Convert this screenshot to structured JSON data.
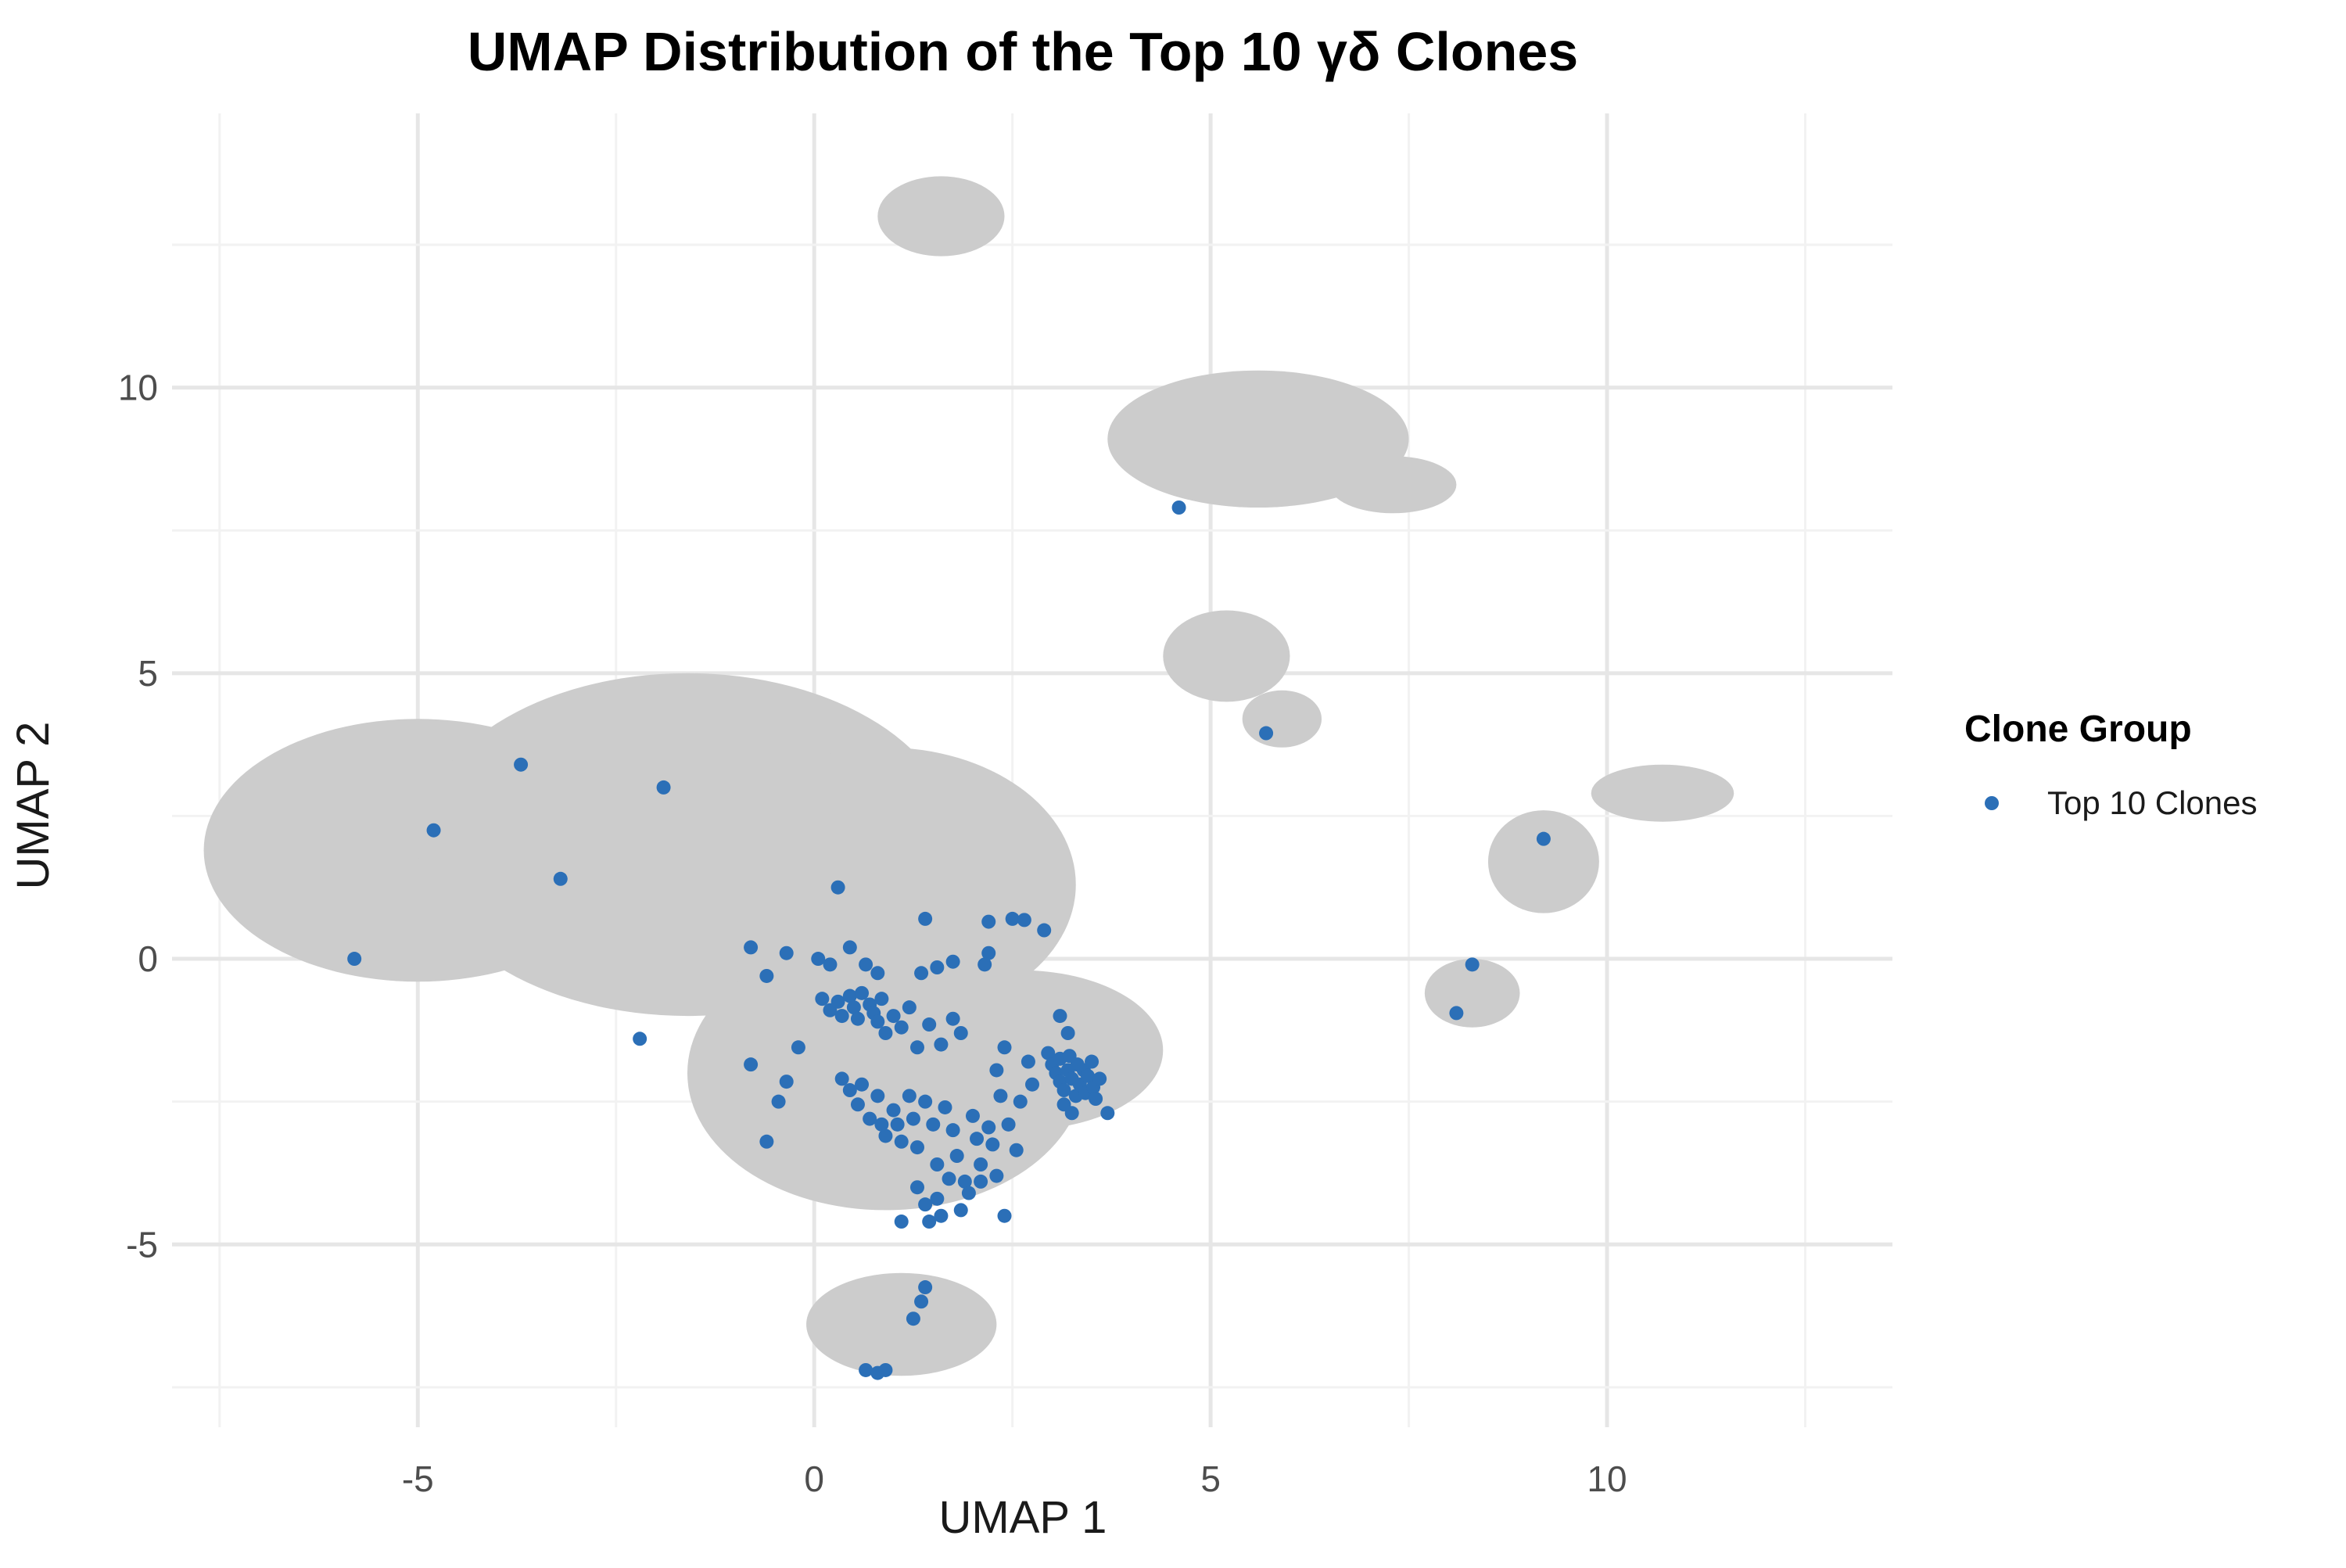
{
  "chart_data": {
    "type": "scatter",
    "title": "UMAP Distribution of the Top 10 γδ Clones",
    "xlabel": "UMAP 1",
    "ylabel": "UMAP 2",
    "xlim": [
      -8.1,
      13.6
    ],
    "ylim": [
      -8.2,
      14.8
    ],
    "x_ticks": [
      -5,
      0,
      5,
      10
    ],
    "x_tick_labels": [
      "-5",
      "0",
      "5",
      "10"
    ],
    "y_ticks": [
      -5,
      0,
      5,
      10
    ],
    "y_tick_labels": [
      "-5",
      "0",
      "5",
      "10"
    ],
    "grid": true,
    "legend": {
      "title": "Clone Group",
      "placement": "right",
      "entries": [
        {
          "label": "Top 10 Clones",
          "color": "#2B6FB7"
        }
      ]
    },
    "background": {
      "color": "#CCCCCC",
      "regions": [
        {
          "cx": -5.0,
          "cy": 1.9,
          "rx": 2.7,
          "ry": 2.3
        },
        {
          "cx": -1.6,
          "cy": 2.0,
          "rx": 3.4,
          "ry": 3.0
        },
        {
          "cx": 0.9,
          "cy": 1.3,
          "rx": 2.4,
          "ry": 2.4
        },
        {
          "cx": 0.9,
          "cy": -2.0,
          "rx": 2.5,
          "ry": 2.4
        },
        {
          "cx": 2.6,
          "cy": -1.6,
          "rx": 1.8,
          "ry": 1.4
        },
        {
          "cx": 1.1,
          "cy": -6.4,
          "rx": 1.2,
          "ry": 0.9
        },
        {
          "cx": 1.6,
          "cy": 13.0,
          "rx": 0.8,
          "ry": 0.7
        },
        {
          "cx": 5.6,
          "cy": 9.1,
          "rx": 1.9,
          "ry": 1.2
        },
        {
          "cx": 7.3,
          "cy": 8.3,
          "rx": 0.8,
          "ry": 0.5
        },
        {
          "cx": 5.2,
          "cy": 5.3,
          "rx": 0.8,
          "ry": 0.8
        },
        {
          "cx": 5.9,
          "cy": 4.2,
          "rx": 0.5,
          "ry": 0.5
        },
        {
          "cx": 10.7,
          "cy": 2.9,
          "rx": 0.9,
          "ry": 0.5
        },
        {
          "cx": 9.2,
          "cy": 1.7,
          "rx": 0.7,
          "ry": 0.9
        },
        {
          "cx": 8.3,
          "cy": -0.6,
          "rx": 0.6,
          "ry": 0.6
        }
      ]
    },
    "series": [
      {
        "name": "Top 10 Clones",
        "color": "#2B6FB7",
        "points": [
          [
            4.6,
            7.9
          ],
          [
            5.7,
            3.95
          ],
          [
            9.2,
            2.1
          ],
          [
            8.3,
            -0.1
          ],
          [
            8.1,
            -0.95
          ],
          [
            -3.7,
            3.4
          ],
          [
            -1.9,
            3.0
          ],
          [
            -4.8,
            2.25
          ],
          [
            -3.2,
            1.4
          ],
          [
            -5.8,
            0.0
          ],
          [
            -2.2,
            -1.4
          ],
          [
            0.3,
            1.25
          ],
          [
            1.4,
            0.7
          ],
          [
            2.2,
            0.65
          ],
          [
            2.5,
            0.7
          ],
          [
            2.65,
            0.68
          ],
          [
            2.9,
            0.5
          ],
          [
            2.2,
            0.1
          ],
          [
            2.15,
            -0.1
          ],
          [
            1.75,
            -0.05
          ],
          [
            1.55,
            -0.15
          ],
          [
            1.35,
            -0.25
          ],
          [
            -0.8,
            0.2
          ],
          [
            -0.6,
            -0.3
          ],
          [
            -0.35,
            0.1
          ],
          [
            0.05,
            0.0
          ],
          [
            0.2,
            -0.1
          ],
          [
            0.45,
            0.2
          ],
          [
            0.65,
            -0.1
          ],
          [
            0.8,
            -0.25
          ],
          [
            0.1,
            -0.7
          ],
          [
            0.2,
            -0.9
          ],
          [
            0.3,
            -0.75
          ],
          [
            0.35,
            -1.0
          ],
          [
            0.45,
            -0.65
          ],
          [
            0.5,
            -0.85
          ],
          [
            0.55,
            -1.05
          ],
          [
            0.6,
            -0.6
          ],
          [
            0.7,
            -0.8
          ],
          [
            0.75,
            -0.95
          ],
          [
            0.8,
            -1.1
          ],
          [
            0.85,
            -0.7
          ],
          [
            0.9,
            -1.3
          ],
          [
            1.0,
            -1.0
          ],
          [
            1.1,
            -1.2
          ],
          [
            1.2,
            -0.85
          ],
          [
            1.3,
            -1.55
          ],
          [
            1.45,
            -1.15
          ],
          [
            1.6,
            -1.5
          ],
          [
            1.75,
            -1.05
          ],
          [
            1.85,
            -1.3
          ],
          [
            -0.2,
            -1.55
          ],
          [
            -0.8,
            -1.85
          ],
          [
            -0.35,
            -2.15
          ],
          [
            -0.45,
            -2.5
          ],
          [
            -0.6,
            -3.2
          ],
          [
            0.35,
            -2.1
          ],
          [
            0.45,
            -2.3
          ],
          [
            0.55,
            -2.55
          ],
          [
            0.6,
            -2.2
          ],
          [
            0.7,
            -2.8
          ],
          [
            0.8,
            -2.4
          ],
          [
            0.85,
            -2.9
          ],
          [
            0.9,
            -3.1
          ],
          [
            1.0,
            -2.65
          ],
          [
            1.05,
            -2.9
          ],
          [
            1.1,
            -3.2
          ],
          [
            1.2,
            -2.4
          ],
          [
            1.25,
            -2.8
          ],
          [
            1.3,
            -3.3
          ],
          [
            1.4,
            -2.5
          ],
          [
            1.5,
            -2.9
          ],
          [
            1.55,
            -3.6
          ],
          [
            1.65,
            -2.6
          ],
          [
            1.75,
            -3.0
          ],
          [
            1.8,
            -3.45
          ],
          [
            1.9,
            -3.9
          ],
          [
            2.0,
            -2.75
          ],
          [
            2.05,
            -3.15
          ],
          [
            2.1,
            -3.6
          ],
          [
            2.2,
            -2.95
          ],
          [
            2.25,
            -3.25
          ],
          [
            2.3,
            -3.8
          ],
          [
            2.35,
            -2.4
          ],
          [
            2.45,
            -2.9
          ],
          [
            2.55,
            -3.35
          ],
          [
            2.6,
            -2.5
          ],
          [
            2.7,
            -1.8
          ],
          [
            2.75,
            -2.2
          ],
          [
            2.3,
            -1.95
          ],
          [
            2.4,
            -1.55
          ],
          [
            2.95,
            -1.65
          ],
          [
            3.0,
            -1.85
          ],
          [
            3.05,
            -2.0
          ],
          [
            3.1,
            -1.75
          ],
          [
            3.1,
            -2.15
          ],
          [
            3.15,
            -2.3
          ],
          [
            3.2,
            -1.95
          ],
          [
            3.22,
            -1.7
          ],
          [
            3.25,
            -2.1
          ],
          [
            3.3,
            -2.4
          ],
          [
            3.32,
            -1.85
          ],
          [
            3.35,
            -2.2
          ],
          [
            3.4,
            -1.95
          ],
          [
            3.42,
            -2.35
          ],
          [
            3.45,
            -2.05
          ],
          [
            3.5,
            -1.8
          ],
          [
            3.52,
            -2.25
          ],
          [
            3.55,
            -2.45
          ],
          [
            3.6,
            -2.1
          ],
          [
            3.1,
            -1.0
          ],
          [
            3.2,
            -1.3
          ],
          [
            3.15,
            -2.55
          ],
          [
            3.25,
            -2.7
          ],
          [
            3.7,
            -2.7
          ],
          [
            1.3,
            -4.0
          ],
          [
            1.4,
            -4.3
          ],
          [
            1.45,
            -4.6
          ],
          [
            1.55,
            -4.2
          ],
          [
            1.6,
            -4.5
          ],
          [
            1.7,
            -3.85
          ],
          [
            1.85,
            -4.4
          ],
          [
            1.95,
            -4.1
          ],
          [
            2.1,
            -3.9
          ],
          [
            2.4,
            -4.5
          ],
          [
            1.1,
            -4.6
          ],
          [
            1.4,
            -5.75
          ],
          [
            1.35,
            -6.0
          ],
          [
            1.25,
            -6.3
          ],
          [
            0.65,
            -7.2
          ],
          [
            0.8,
            -7.25
          ],
          [
            0.9,
            -7.2
          ]
        ]
      }
    ]
  }
}
